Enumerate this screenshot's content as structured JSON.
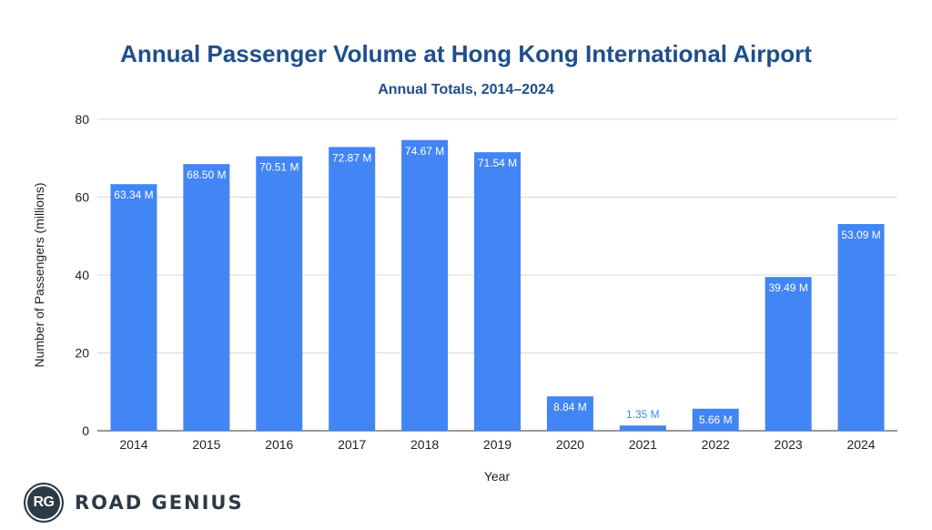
{
  "chart_data": {
    "type": "bar",
    "title": "Annual Passenger Volume at Hong Kong International Airport",
    "subtitle": "Annual Totals, 2014–2024",
    "xlabel": "Year",
    "ylabel": "Number of Passengers (millions)",
    "ylim": [
      0,
      80
    ],
    "yticks": [
      0,
      20,
      40,
      60,
      80
    ],
    "grid": true,
    "legend": "none",
    "bar_color": "#4285f4",
    "categories": [
      "2014",
      "2015",
      "2016",
      "2017",
      "2018",
      "2019",
      "2020",
      "2021",
      "2022",
      "2023",
      "2024"
    ],
    "values": [
      63.34,
      68.5,
      70.51,
      72.87,
      74.67,
      71.54,
      8.84,
      1.35,
      5.66,
      39.49,
      53.09
    ],
    "data_labels": [
      "63.34 M",
      "68.50 M",
      "70.51 M",
      "72.87 M",
      "74.67 M",
      "71.54 M",
      "8.84 M",
      "1.35 M",
      "5.66 M",
      "39.49 M",
      "53.09 M"
    ]
  },
  "brand": {
    "mark": "RG",
    "name": "ROAD GENIUS",
    "color": "#2c3a47"
  }
}
